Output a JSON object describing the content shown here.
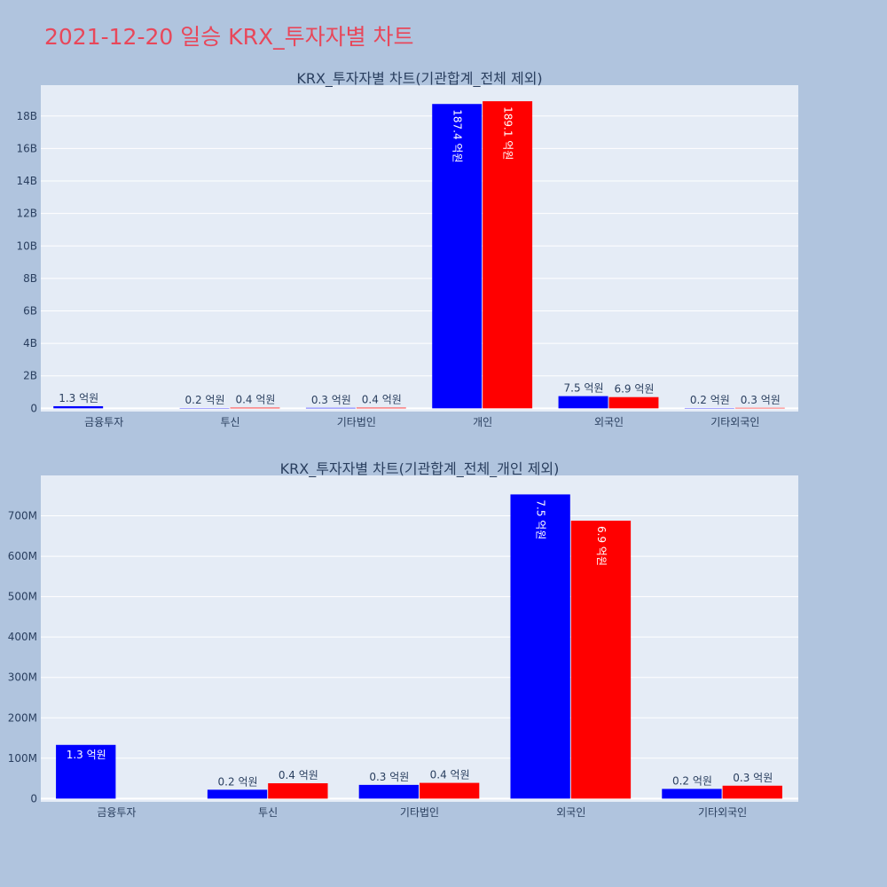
{
  "page_title": "2021-12-20 일승 KRX_투자자별 차트",
  "colors": {
    "buy": "#0000ff",
    "sell": "#ff0000",
    "plot_bg": "#e5ecf6",
    "page_bg": "#b0c4de",
    "title": "#e8475a"
  },
  "chart_data": [
    {
      "type": "bar",
      "title": "KRX_투자자별 차트(기관합계_전체 제외)",
      "categories": [
        "금융투자",
        "투신",
        "기타법인",
        "개인",
        "외국인",
        "기타외국인"
      ],
      "series": [
        {
          "color": "#0000ff",
          "values": [
            130000000,
            20000000,
            30000000,
            18740000000,
            750000000,
            20000000
          ],
          "labels": [
            "1.3 억원",
            "0.2 억원",
            "0.3 억원",
            "187.4 억원",
            "7.5 억원",
            "0.2 억원"
          ]
        },
        {
          "color": "#ff0000",
          "values": [
            0,
            40000000,
            40000000,
            18910000000,
            690000000,
            30000000
          ],
          "labels": [
            "",
            "0.4 억원",
            "0.4 억원",
            "189.1 억원",
            "6.9 억원",
            "0.3 억원"
          ]
        }
      ],
      "ylim": [
        -200000000,
        19900000000
      ],
      "yticks": [
        0,
        2000000000,
        4000000000,
        6000000000,
        8000000000,
        10000000000,
        12000000000,
        14000000000,
        16000000000,
        18000000000
      ],
      "ytick_labels": [
        "0",
        "2B",
        "4B",
        "6B",
        "8B",
        "10B",
        "12B",
        "14B",
        "16B",
        "18B"
      ],
      "grid": true
    },
    {
      "type": "bar",
      "title": "KRX_투자자별 차트(기관합계_전체_개인 제외)",
      "categories": [
        "금융투자",
        "투신",
        "기타법인",
        "외국인",
        "기타외국인"
      ],
      "series": [
        {
          "color": "#0000ff",
          "values": [
            133000000,
            22000000,
            34000000,
            753000000,
            24000000
          ],
          "labels": [
            "1.3 억원",
            "0.2 억원",
            "0.3 억원",
            "7.5 억원",
            "0.2 억원"
          ]
        },
        {
          "color": "#ff0000",
          "values": [
            0,
            38000000,
            39000000,
            688000000,
            32000000
          ],
          "labels": [
            "",
            "0.4 억원",
            "0.4 억원",
            "6.9 억원",
            "0.3 억원"
          ]
        }
      ],
      "ylim": [
        -8000000,
        800000000
      ],
      "yticks": [
        0,
        100000000,
        200000000,
        300000000,
        400000000,
        500000000,
        600000000,
        700000000
      ],
      "ytick_labels": [
        "0",
        "100M",
        "200M",
        "300M",
        "400M",
        "500M",
        "600M",
        "700M"
      ],
      "grid": true
    }
  ]
}
